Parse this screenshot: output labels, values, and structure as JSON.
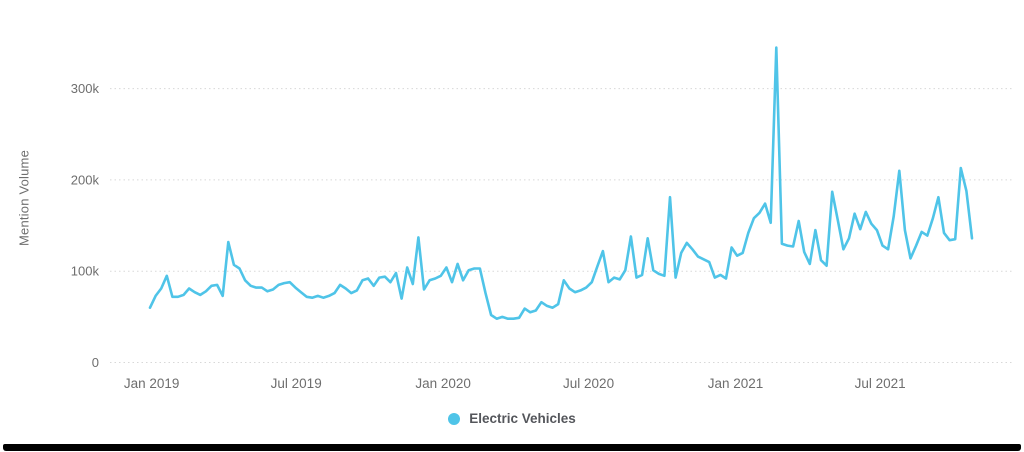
{
  "chart_data": {
    "type": "line",
    "title": "",
    "ylabel": "Mention Volume",
    "unit": "mentions (values in thousands)",
    "grid": "horizontal-dotted",
    "legend_position": "bottom-center",
    "ylim_thousands": [
      0,
      380
    ],
    "y_ticks": [
      {
        "value_thousands": 0,
        "label": "0"
      },
      {
        "value_thousands": 100,
        "label": "100k"
      },
      {
        "value_thousands": 200,
        "label": "200k"
      },
      {
        "value_thousands": 300,
        "label": "300k"
      }
    ],
    "x_interval": "weekly",
    "x_start": "2018-12-30",
    "x_ticks": [
      {
        "date": "2019-01-01",
        "label": "Jan 2019"
      },
      {
        "date": "2019-07-01",
        "label": "Jul 2019"
      },
      {
        "date": "2020-01-01",
        "label": "Jan 2020"
      },
      {
        "date": "2020-07-01",
        "label": "Jul 2020"
      },
      {
        "date": "2021-01-01",
        "label": "Jan 2021"
      },
      {
        "date": "2021-07-01",
        "label": "Jul 2021"
      }
    ],
    "series": [
      {
        "name": "Electric Vehicles",
        "color": "#4fc4e8",
        "values_thousands": [
          60,
          73,
          81,
          95,
          72,
          72,
          74,
          81,
          77,
          74,
          78,
          84,
          85,
          73,
          132,
          107,
          103,
          90,
          84,
          82,
          82,
          78,
          80,
          85,
          87,
          88,
          82,
          77,
          72,
          71,
          73,
          71,
          73,
          76,
          85,
          81,
          76,
          79,
          90,
          92,
          84,
          93,
          94,
          88,
          98,
          70,
          104,
          86,
          137,
          80,
          90,
          92,
          95,
          104,
          88,
          108,
          90,
          101,
          103,
          103,
          76,
          52,
          48,
          50,
          48,
          48,
          49,
          59,
          55,
          57,
          66,
          62,
          60,
          64,
          90,
          81,
          77,
          79,
          82,
          88,
          105,
          122,
          88,
          93,
          91,
          101,
          138,
          93,
          96,
          136,
          101,
          97,
          95,
          181,
          93,
          120,
          131,
          124,
          116,
          113,
          110,
          93,
          96,
          92,
          126,
          117,
          120,
          142,
          158,
          164,
          174,
          153,
          345,
          130,
          128,
          127,
          155,
          121,
          108,
          145,
          112,
          106,
          187,
          156,
          124,
          136,
          163,
          146,
          165,
          152,
          145,
          128,
          124,
          160,
          210,
          145,
          114,
          128,
          143,
          139,
          158,
          181,
          142,
          134,
          135,
          213,
          188,
          136
        ]
      }
    ],
    "annotations": {
      "max_spike_thousands": 345,
      "max_spike_week": "2021-02"
    }
  },
  "legend": {
    "items": [
      {
        "label": "Electric Vehicles",
        "color": "#4fc4e8"
      }
    ]
  },
  "style_colors": {
    "line": "#4fc4e8",
    "tick_text": "#6e6e6e",
    "legend_text": "#54565b",
    "gridline": "#d8d8d8"
  }
}
